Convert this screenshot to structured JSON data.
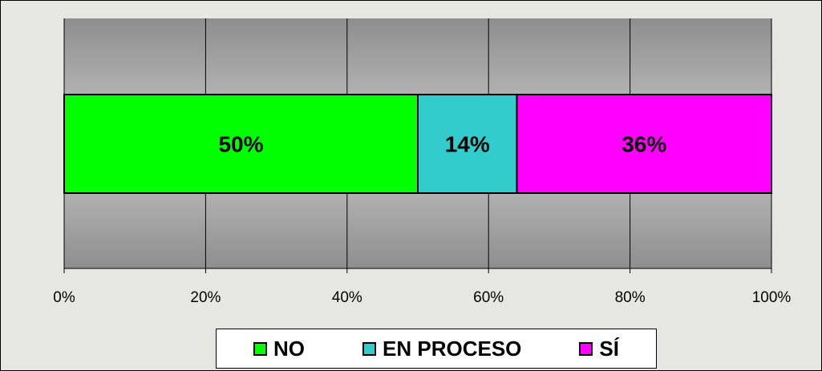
{
  "chart_data": {
    "type": "bar",
    "orientation": "horizontal",
    "stacked": true,
    "categories": [
      ""
    ],
    "series": [
      {
        "name": "NO",
        "values": [
          50
        ],
        "label": "50%",
        "color": "#00ff00"
      },
      {
        "name": "EN PROCESO",
        "values": [
          14
        ],
        "label": "14%",
        "color": "#33cccc"
      },
      {
        "name": "SÍ",
        "values": [
          36
        ],
        "label": "36%",
        "color": "#ff00ff"
      }
    ],
    "xlim": [
      0,
      100
    ],
    "x_ticks": [
      0,
      20,
      40,
      60,
      80,
      100
    ],
    "x_tick_labels": [
      "0%",
      "20%",
      "40%",
      "60%",
      "80%",
      "100%"
    ],
    "grid": true,
    "legend": "bottom",
    "plot_background": "#c0c0c0",
    "title": "",
    "xlabel": "",
    "ylabel": ""
  }
}
